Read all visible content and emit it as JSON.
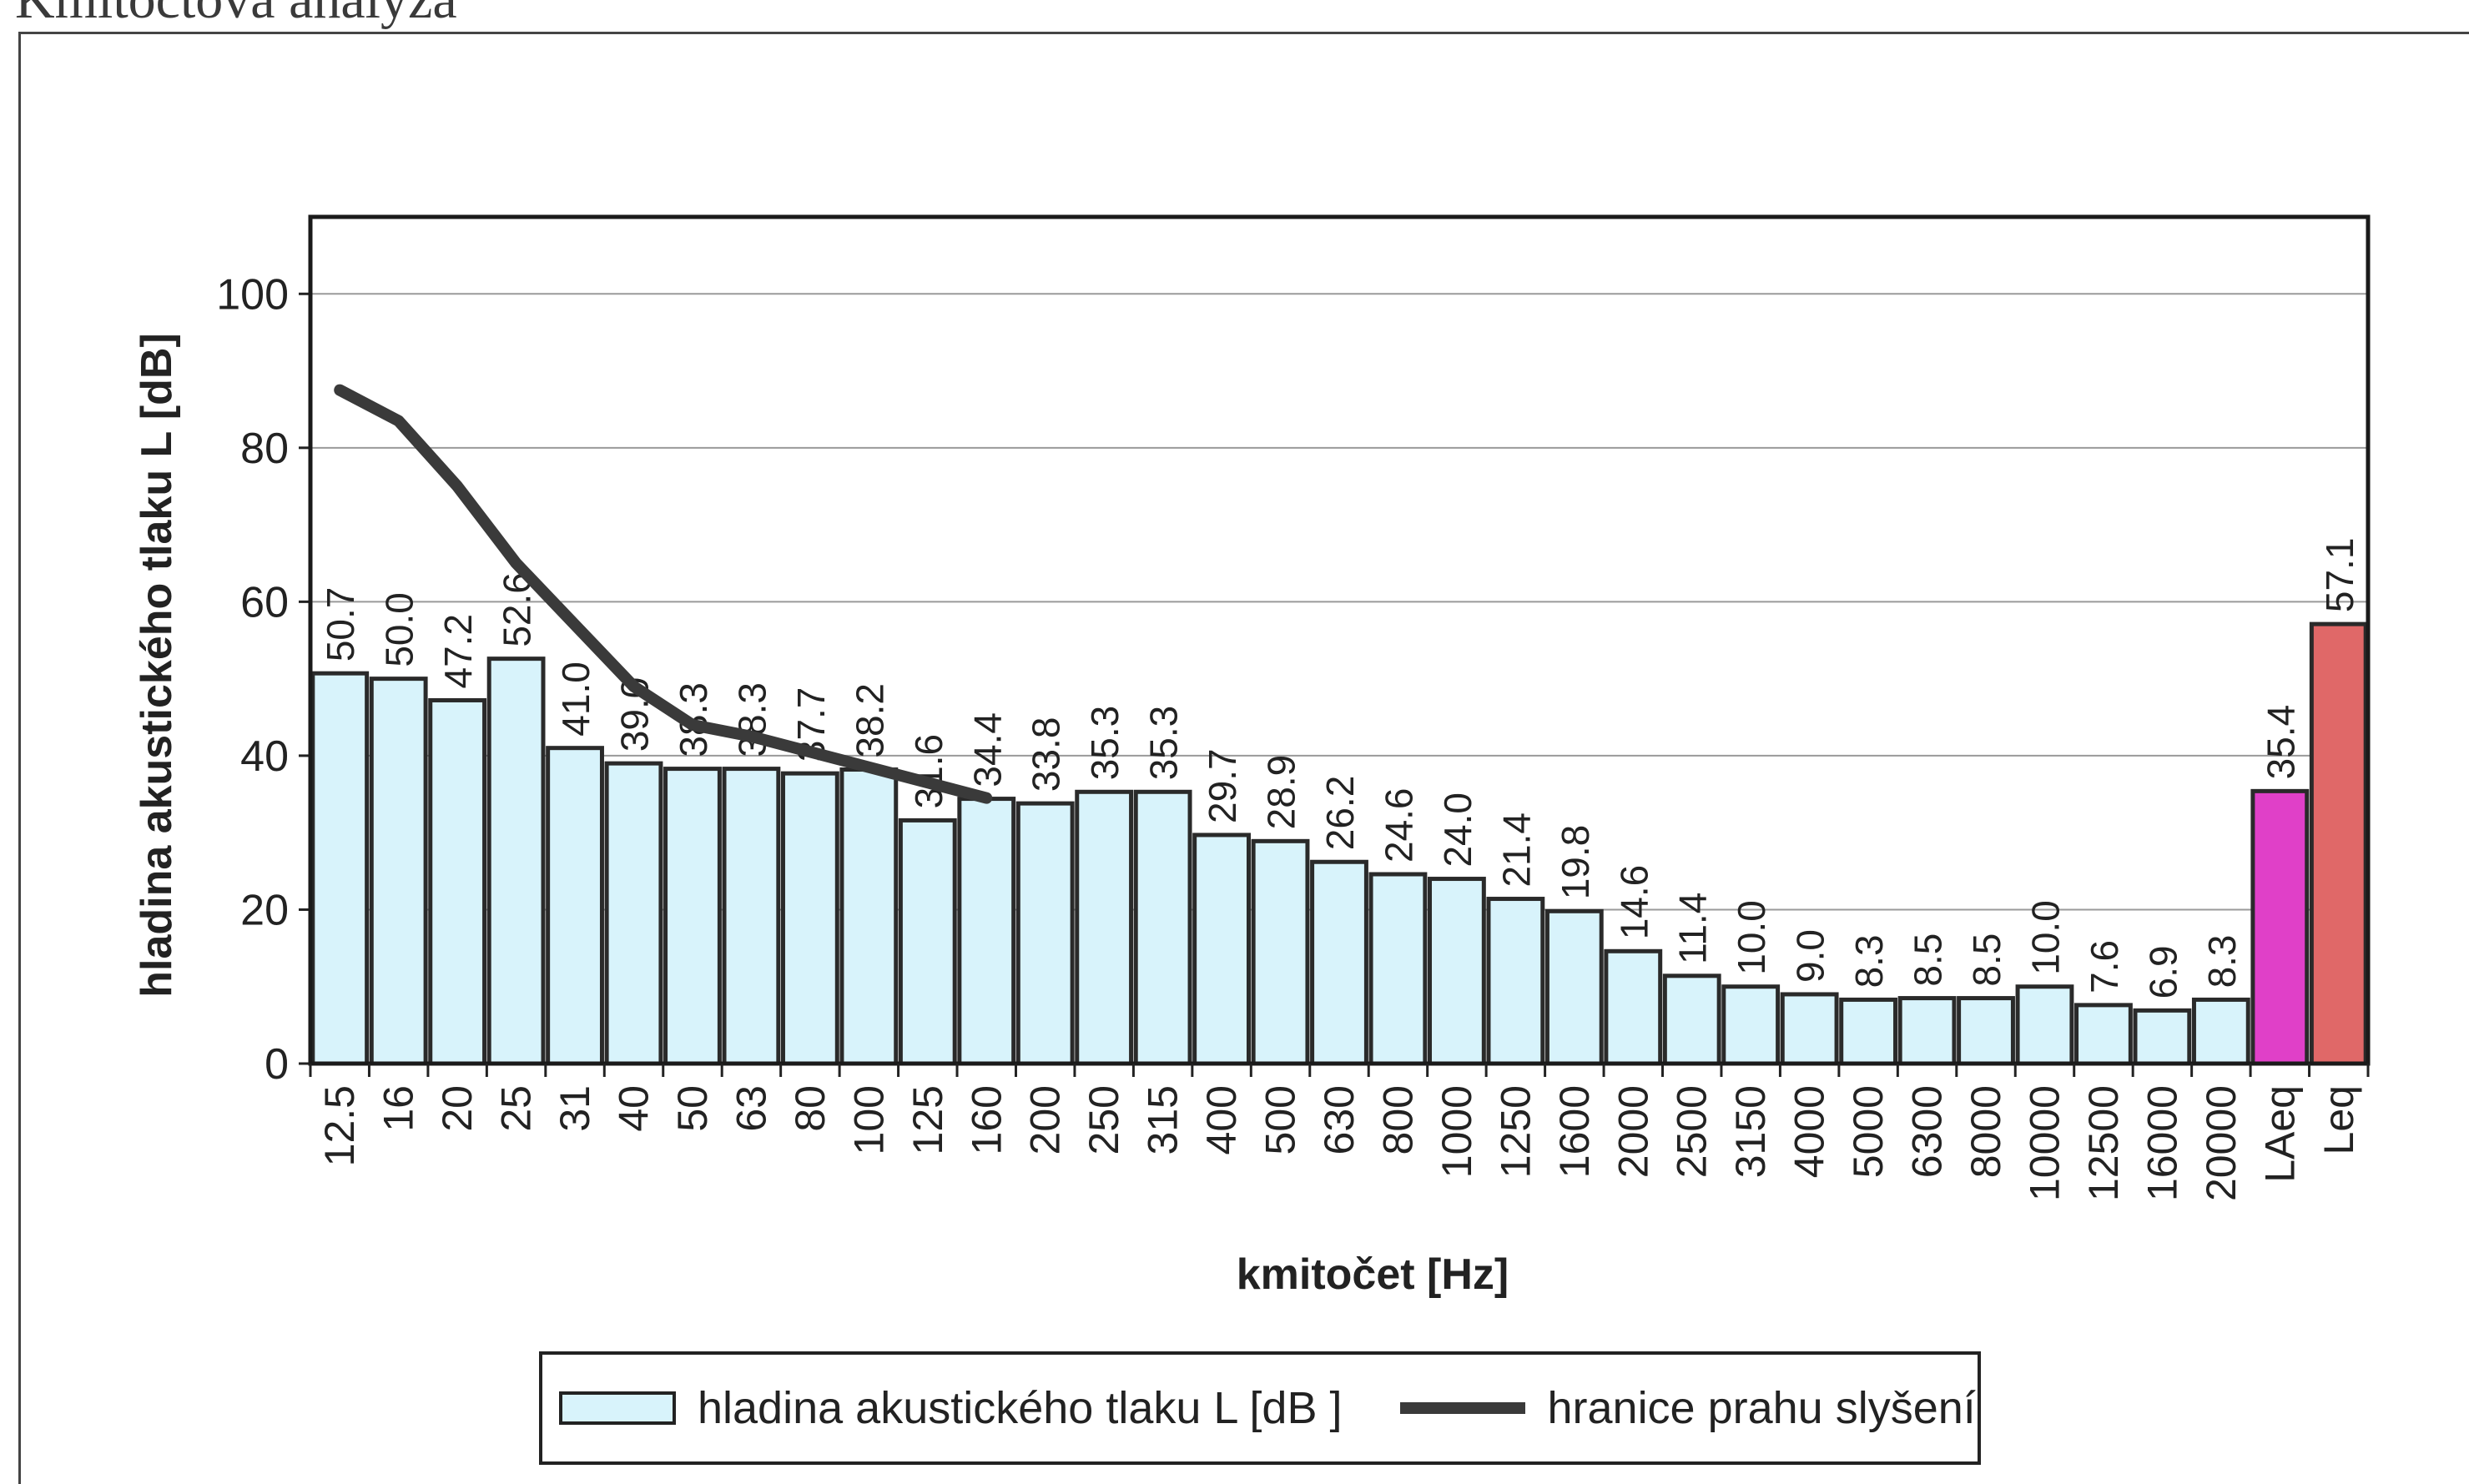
{
  "page": {
    "title": "Kmitočtová analýza"
  },
  "chart_data": {
    "type": "bar",
    "title": "",
    "xlabel": "kmitočet [Hz]",
    "ylabel": "hladina akustického tlaku  L [dB]",
    "ylim": [
      0,
      110
    ],
    "yticks": [
      0,
      20,
      40,
      60,
      80,
      100
    ],
    "grid": true,
    "legend_position": "bottom",
    "categories": [
      "12.5",
      "16",
      "20",
      "25",
      "31",
      "40",
      "50",
      "63",
      "80",
      "100",
      "125",
      "160",
      "200",
      "250",
      "315",
      "400",
      "500",
      "630",
      "800",
      "1000",
      "1250",
      "1600",
      "2000",
      "2500",
      "3150",
      "4000",
      "5000",
      "6300",
      "8000",
      "10000",
      "12500",
      "16000",
      "20000",
      "LAeq",
      "Leq"
    ],
    "series": [
      {
        "name": "hladina akustického tlaku L [dB ]",
        "type": "bar",
        "values": [
          50.7,
          50.0,
          47.2,
          52.6,
          41.0,
          39.0,
          38.3,
          38.3,
          37.7,
          38.2,
          31.6,
          34.4,
          33.8,
          35.3,
          35.3,
          29.7,
          28.9,
          26.2,
          24.6,
          24.0,
          21.4,
          19.8,
          14.6,
          11.4,
          10.0,
          9.0,
          8.3,
          8.5,
          8.5,
          10.0,
          7.6,
          6.9,
          8.3,
          35.4,
          57.1
        ],
        "labels": [
          "50.7",
          "50.0",
          "47.2",
          "52.6",
          "41.0",
          "39.0",
          "38.3",
          "38.3",
          "37.7",
          "38.2",
          "31.6",
          "34.4",
          "33.8",
          "35.3",
          "35.3",
          "29.7",
          "28.9",
          "26.2",
          "24.6",
          "24.0",
          "21.4",
          "19.8",
          "14.6",
          "11.4",
          "10.0",
          "9.0",
          "8.3",
          "8.5",
          "8.5",
          "10.0",
          "7.6",
          "6.9",
          "8.3",
          "35.4",
          "57.1"
        ],
        "color": "#d8f3fb",
        "special_colors": {
          "LAeq": "#e040c8",
          "Leq": "#e06868"
        }
      },
      {
        "name": "hranice prahu slyšení",
        "type": "line",
        "x": [
          "12.5",
          "16",
          "20",
          "25",
          "31",
          "40",
          "50",
          "63",
          "80",
          "100",
          "125",
          "160"
        ],
        "values": [
          87.5,
          83.5,
          75,
          65,
          57,
          49,
          44,
          42.5,
          40.5,
          38.5,
          36.5,
          34.5
        ],
        "color": "#3a3a3a"
      }
    ]
  }
}
